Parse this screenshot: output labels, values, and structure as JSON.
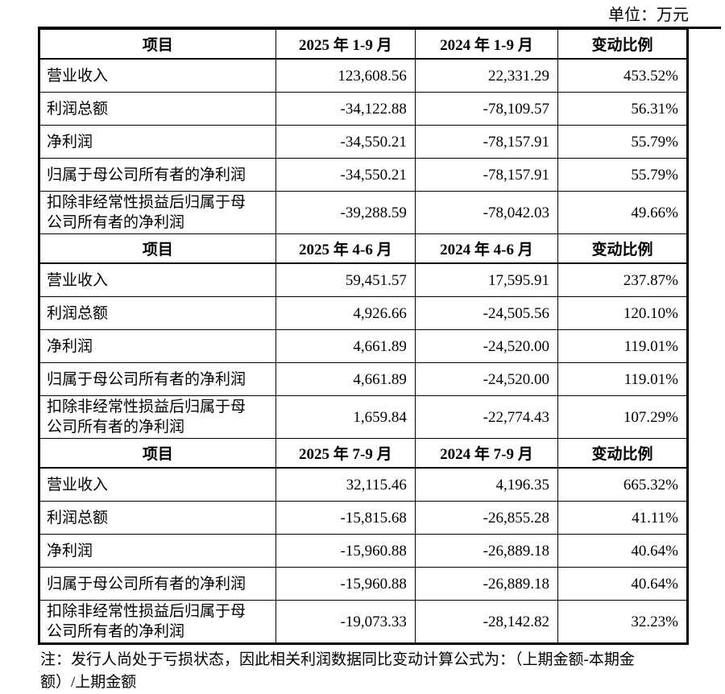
{
  "page": {
    "unit_label": "单位：万元",
    "note_line1": "注：发行人尚处于亏损状态，因此相关利润数据同比变动计算公式为：（上期金额-本期金",
    "note_line2": "额）/上期金额"
  },
  "table": {
    "sections": [
      {
        "header": [
          "项目",
          "2025 年 1-9 月",
          "2024 年 1-9 月",
          "变动比例"
        ],
        "rows": [
          [
            "营业收入",
            "123,608.56",
            "22,331.29",
            "453.52%"
          ],
          [
            "利润总额",
            "-34,122.88",
            "-78,109.57",
            "56.31%"
          ],
          [
            "净利润",
            "-34,550.21",
            "-78,157.91",
            "55.79%"
          ],
          [
            "归属于母公司所有者的净利润",
            "-34,550.21",
            "-78,157.91",
            "55.79%"
          ],
          [
            "扣除非经常性损益后归属于母公司所有者的净利润",
            "-39,288.59",
            "-78,042.03",
            "49.66%"
          ]
        ]
      },
      {
        "header": [
          "项目",
          "2025 年 4-6 月",
          "2024 年 4-6 月",
          "变动比例"
        ],
        "rows": [
          [
            "营业收入",
            "59,451.57",
            "17,595.91",
            "237.87%"
          ],
          [
            "利润总额",
            "4,926.66",
            "-24,505.56",
            "120.10%"
          ],
          [
            "净利润",
            "4,661.89",
            "-24,520.00",
            "119.01%"
          ],
          [
            "归属于母公司所有者的净利润",
            "4,661.89",
            "-24,520.00",
            "119.01%"
          ],
          [
            "扣除非经常性损益后归属于母公司所有者的净利润",
            "1,659.84",
            "-22,774.43",
            "107.29%"
          ]
        ]
      },
      {
        "header": [
          "项目",
          "2025 年 7-9 月",
          "2024 年 7-9 月",
          "变动比例"
        ],
        "rows": [
          [
            "营业收入",
            "32,115.46",
            "4,196.35",
            "665.32%"
          ],
          [
            "利润总额",
            "-15,815.68",
            "-26,855.28",
            "41.11%"
          ],
          [
            "净利润",
            "-15,960.88",
            "-26,889.18",
            "40.64%"
          ],
          [
            "归属于母公司所有者的净利润",
            "-15,960.88",
            "-26,889.18",
            "40.64%"
          ],
          [
            "扣除非经常性损益后归属于母公司所有者的净利润",
            "-19,073.33",
            "-28,142.82",
            "32.23%"
          ]
        ]
      }
    ]
  }
}
